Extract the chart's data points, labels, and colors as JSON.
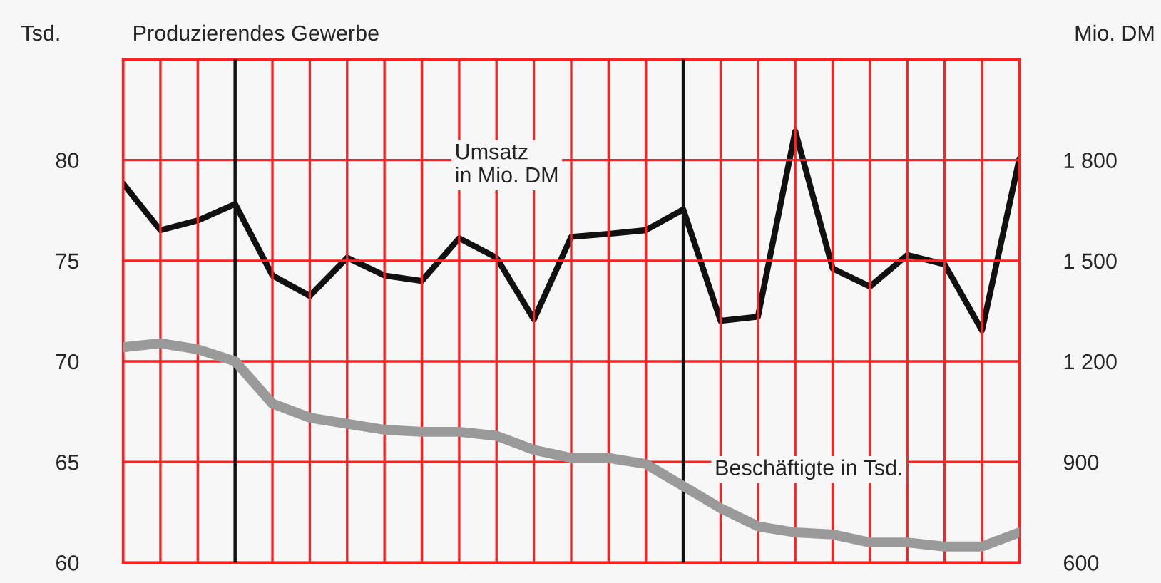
{
  "chart_data": {
    "type": "line",
    "title": "Produzierendes Gewerbe",
    "ylabel": "Tsd.",
    "y2label": "Mio. DM",
    "categories": [
      null,
      null,
      null,
      null,
      null,
      null,
      null,
      null,
      null,
      null,
      null,
      null,
      null,
      null,
      null,
      null,
      null,
      null,
      null,
      null,
      null,
      null,
      null,
      null,
      null
    ],
    "ylim": [
      60,
      85
    ],
    "yticks": [
      60,
      65,
      70,
      75,
      80
    ],
    "y2lim": [
      600,
      2100
    ],
    "y2ticks": [
      600,
      900,
      {
        "value": 1200,
        "label": "1 200"
      },
      {
        "value": 1500,
        "label": "1 500"
      },
      {
        "value": 1800,
        "label": "1 800"
      }
    ],
    "series": [
      {
        "name": "Umsatz\nin Mio. DM",
        "axis": "y2",
        "color": "#111111",
        "values": [
          1730,
          1591,
          1620,
          1669,
          1456,
          1395,
          1509,
          1456,
          1440,
          1567,
          1509,
          1325,
          1571,
          1580,
          1591,
          1653,
          1321,
          1333,
          1886,
          1477,
          1423,
          1517,
          1489,
          1292,
          1804
        ]
      },
      {
        "name": "Beschäftigte in Tsd.",
        "color": "#9a9a9a",
        "values": [
          70.7,
          70.9,
          70.6,
          70.0,
          67.9,
          67.2,
          66.9,
          66.6,
          66.5,
          66.5,
          66.3,
          65.6,
          65.2,
          65.2,
          64.9,
          63.8,
          62.7,
          61.8,
          61.5,
          61.4,
          61.0,
          61.0,
          60.8,
          60.8,
          61.5
        ]
      }
    ],
    "grid": true,
    "tick_labels": "y"
  }
}
